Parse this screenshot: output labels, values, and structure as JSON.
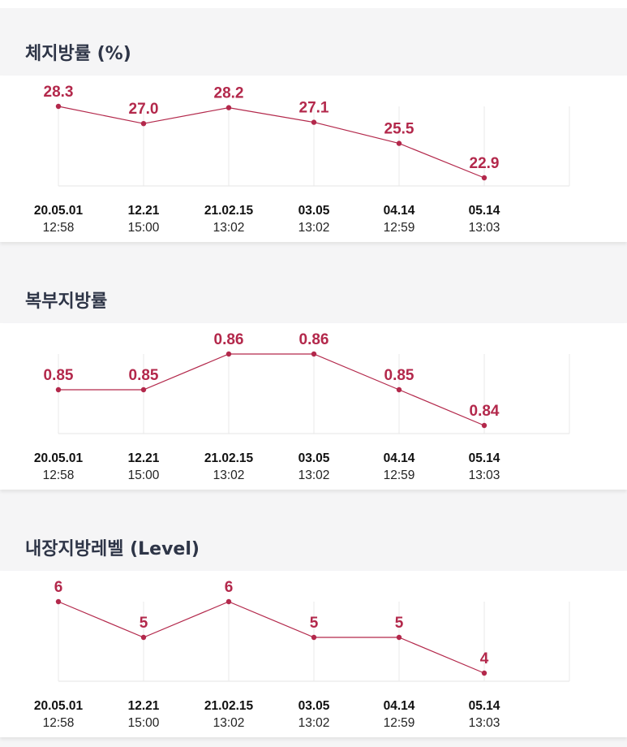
{
  "x_labels": [
    {
      "date": "20.05.01",
      "time": "12:58"
    },
    {
      "date": "12.21",
      "time": "15:00"
    },
    {
      "date": "21.02.15",
      "time": "13:02"
    },
    {
      "date": "03.05",
      "time": "13:02"
    },
    {
      "date": "04.14",
      "time": "12:59"
    },
    {
      "date": "05.14",
      "time": "13:03"
    }
  ],
  "colors": {
    "series": "#b3284b",
    "title": "#2e3547"
  },
  "chart_data": [
    {
      "type": "line",
      "title": "체지방률 (%)",
      "categories": [
        "20.05.01 12:58",
        "12.21 15:00",
        "21.02.15 13:02",
        "03.05 13:02",
        "04.14 12:59",
        "05.14 13:03"
      ],
      "values": [
        28.3,
        27.0,
        28.2,
        27.1,
        25.5,
        22.9
      ],
      "value_labels": [
        "28.3",
        "27.0",
        "28.2",
        "27.1",
        "25.5",
        "22.9"
      ],
      "grid": true
    },
    {
      "type": "line",
      "title": "복부지방률",
      "categories": [
        "20.05.01 12:58",
        "12.21 15:00",
        "21.02.15 13:02",
        "03.05 13:02",
        "04.14 12:59",
        "05.14 13:03"
      ],
      "values": [
        0.85,
        0.85,
        0.86,
        0.86,
        0.85,
        0.84
      ],
      "value_labels": [
        "0.85",
        "0.85",
        "0.86",
        "0.86",
        "0.85",
        "0.84"
      ],
      "grid": true
    },
    {
      "type": "line",
      "title": "내장지방레벨 (Level)",
      "categories": [
        "20.05.01 12:58",
        "12.21 15:00",
        "21.02.15 13:02",
        "03.05 13:02",
        "04.14 12:59",
        "05.14 13:03"
      ],
      "values": [
        6,
        5,
        6,
        5,
        5,
        4
      ],
      "value_labels": [
        "6",
        "5",
        "6",
        "5",
        "5",
        "4"
      ],
      "grid": true
    }
  ]
}
